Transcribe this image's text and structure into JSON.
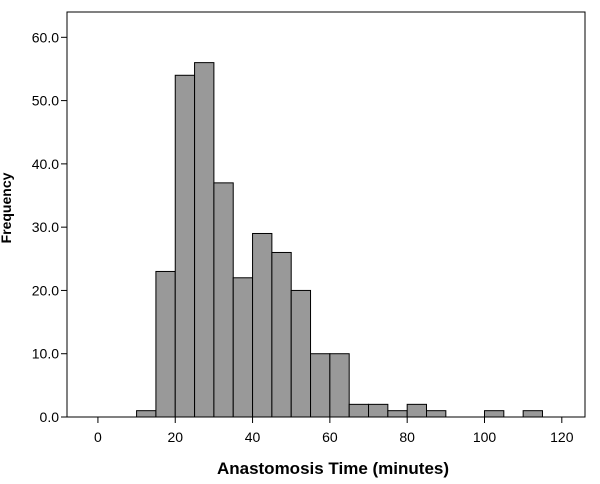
{
  "chart_data": {
    "type": "bar",
    "subtype": "histogram",
    "xlabel": "Anastomosis Time (minutes)",
    "ylabel": "Frequency",
    "xlim": [
      -8,
      126
    ],
    "ylim": [
      0,
      64
    ],
    "xticks": [
      0,
      20,
      40,
      60,
      80,
      100,
      120
    ],
    "xtick_labels": [
      "0",
      "20",
      "40",
      "60",
      "80",
      "100",
      "120"
    ],
    "yticks": [
      0,
      10,
      20,
      30,
      40,
      50,
      60
    ],
    "ytick_labels": [
      "0.0",
      "10.0",
      "20.0",
      "30.0",
      "40.0",
      "50.0",
      "60.0"
    ],
    "bin_width": 5,
    "bins": [
      {
        "start": 10,
        "end": 15,
        "value": 1
      },
      {
        "start": 15,
        "end": 20,
        "value": 23
      },
      {
        "start": 20,
        "end": 25,
        "value": 54
      },
      {
        "start": 25,
        "end": 30,
        "value": 56
      },
      {
        "start": 30,
        "end": 35,
        "value": 37
      },
      {
        "start": 35,
        "end": 40,
        "value": 22
      },
      {
        "start": 40,
        "end": 45,
        "value": 29
      },
      {
        "start": 45,
        "end": 50,
        "value": 26
      },
      {
        "start": 50,
        "end": 55,
        "value": 20
      },
      {
        "start": 55,
        "end": 60,
        "value": 10
      },
      {
        "start": 60,
        "end": 65,
        "value": 10
      },
      {
        "start": 65,
        "end": 70,
        "value": 2
      },
      {
        "start": 70,
        "end": 75,
        "value": 2
      },
      {
        "start": 75,
        "end": 80,
        "value": 1
      },
      {
        "start": 80,
        "end": 85,
        "value": 2
      },
      {
        "start": 85,
        "end": 90,
        "value": 1
      },
      {
        "start": 100,
        "end": 105,
        "value": 1
      },
      {
        "start": 110,
        "end": 115,
        "value": 1
      }
    ],
    "bar_color": "#999999",
    "bar_edge_color": "#000000",
    "grid": false
  }
}
